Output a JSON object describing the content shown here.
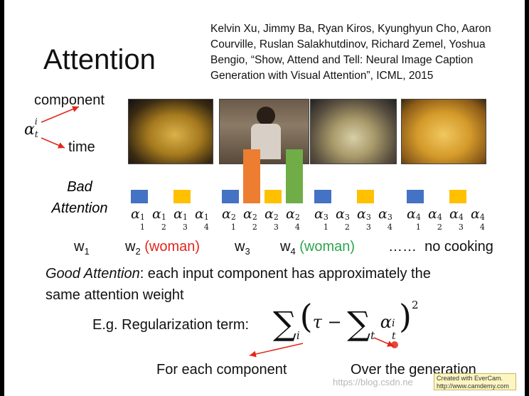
{
  "slide": {
    "title": "Attention",
    "citation": [
      "Kelvin Xu, Jimmy Ba, Ryan Kiros, Kyunghyun Cho, Aaron",
      "Courville, Ruslan Salakhutdinov, Richard Zemel, Yoshua",
      "Bengio, “Show, Attend and Tell: Neural Image Caption",
      "Generation with Visual Attention”, ICML, 2015"
    ],
    "notation": {
      "symbol": "α",
      "sub": "t",
      "sup": "i",
      "component_label": "component",
      "time_label": "time"
    },
    "bad_attention": [
      "Bad",
      "Attention"
    ],
    "alpha_groups": [
      {
        "sup": "1",
        "subs": [
          "1",
          "2",
          "3",
          "4"
        ]
      },
      {
        "sup": "2",
        "subs": [
          "1",
          "2",
          "3",
          "4"
        ]
      },
      {
        "sup": "3",
        "subs": [
          "1",
          "2",
          "3",
          "4"
        ]
      },
      {
        "sup": "4",
        "subs": [
          "1",
          "2",
          "3",
          "4"
        ]
      }
    ],
    "words": [
      {
        "w": "w",
        "sub": "1",
        "note": ""
      },
      {
        "w": "w",
        "sub": "2",
        "note": "(woman)"
      },
      {
        "w": "w",
        "sub": "3",
        "note": ""
      },
      {
        "w": "w",
        "sub": "4",
        "note": "(woman)"
      },
      {
        "w": "……",
        "sub": "",
        "note": "no cooking"
      }
    ],
    "good_attention_label": "Good Attention",
    "good_attention_text": ": each input component has approximately the",
    "good_attention_text2": "same attention weight",
    "regularization_label": "E.g. Regularization term:",
    "formula": {
      "sum1_sub": "i",
      "tau": "τ",
      "minus": "−",
      "sum2_sub": "t",
      "alpha": "α",
      "a_sub": "t",
      "a_sup": "i",
      "power": "2"
    },
    "for_each_component": "For each component",
    "over_generation": "Over the generation",
    "watermark_url": "https://blog.csdn.ne",
    "evercam": {
      "line1": "Created with EverCam.",
      "line2": "http://www.camdemy.com"
    }
  },
  "chart_data": {
    "type": "bar",
    "categories": [
      "α11",
      "α12",
      "α13",
      "α14",
      "α21",
      "α22",
      "α23",
      "α24",
      "α31",
      "α32",
      "α33",
      "α34",
      "α41",
      "α42",
      "α43",
      "α44"
    ],
    "values": [
      1,
      0,
      1,
      0,
      1,
      4,
      1,
      4,
      1,
      0,
      1,
      0,
      1,
      0,
      1,
      0
    ],
    "colors": {
      "blue": "#4472c4",
      "orange": "#ed7d31",
      "yellow": "#ffc000",
      "green": "#70ad47"
    },
    "bar_colors": [
      "#4472c4",
      "",
      "#ffc000",
      "",
      "#4472c4",
      "#ed7d31",
      "#ffc000",
      "#70ad47",
      "#4472c4",
      "",
      "#ffc000",
      "",
      "#4472c4",
      "",
      "#ffc000",
      ""
    ]
  },
  "colors": {
    "red": "#e2261c",
    "green": "#2ea44f",
    "arrow": "#e2261c"
  }
}
